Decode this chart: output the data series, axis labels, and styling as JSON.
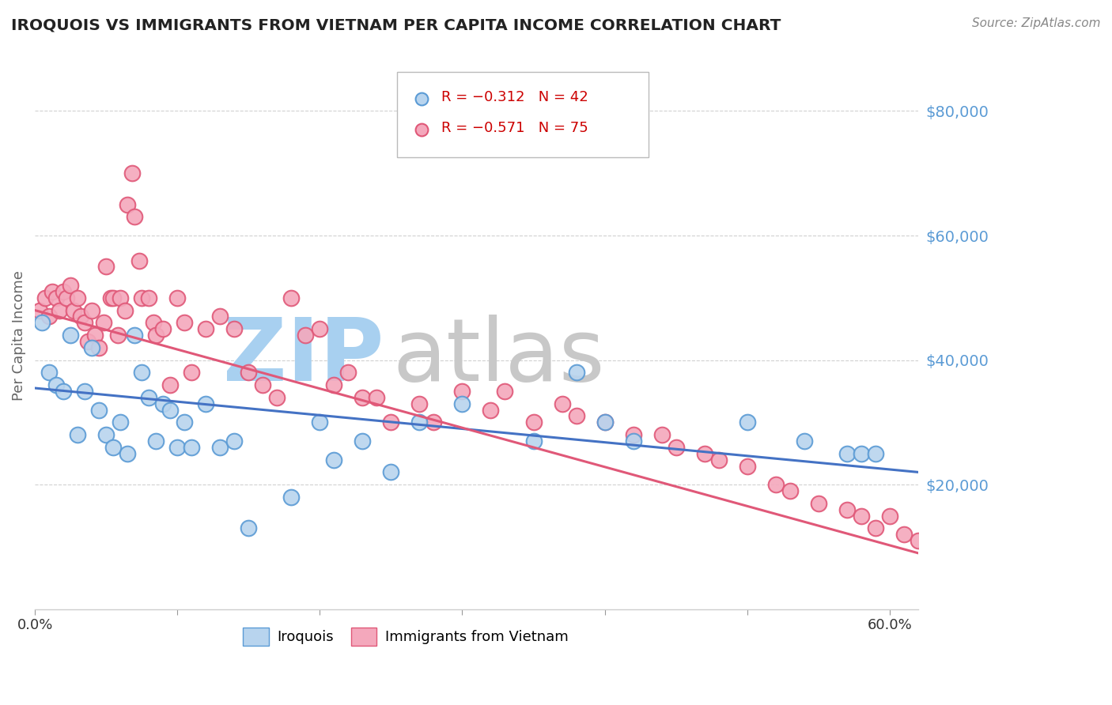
{
  "title": "IROQUOIS VS IMMIGRANTS FROM VIETNAM PER CAPITA INCOME CORRELATION CHART",
  "source": "Source: ZipAtlas.com",
  "ylabel": "Per Capita Income",
  "xlim": [
    0.0,
    0.62
  ],
  "ylim": [
    0,
    88000
  ],
  "yticks": [
    20000,
    40000,
    60000,
    80000
  ],
  "ytick_labels": [
    "$20,000",
    "$40,000",
    "$60,000",
    "$80,000"
  ],
  "xticks": [
    0.0,
    0.1,
    0.2,
    0.3,
    0.4,
    0.5,
    0.6
  ],
  "xtick_labels": [
    "0.0%",
    "",
    "",
    "",
    "",
    "",
    "60.0%"
  ],
  "series_iroquois": {
    "color": "#b8d4ee",
    "edge_color": "#5b9bd5",
    "x": [
      0.005,
      0.01,
      0.015,
      0.02,
      0.025,
      0.03,
      0.035,
      0.04,
      0.045,
      0.05,
      0.055,
      0.06,
      0.065,
      0.07,
      0.075,
      0.08,
      0.085,
      0.09,
      0.095,
      0.1,
      0.105,
      0.11,
      0.12,
      0.13,
      0.14,
      0.15,
      0.18,
      0.2,
      0.21,
      0.23,
      0.25,
      0.27,
      0.3,
      0.35,
      0.38,
      0.4,
      0.42,
      0.5,
      0.54,
      0.57,
      0.58,
      0.59
    ],
    "y": [
      46000,
      38000,
      36000,
      35000,
      44000,
      28000,
      35000,
      42000,
      32000,
      28000,
      26000,
      30000,
      25000,
      44000,
      38000,
      34000,
      27000,
      33000,
      32000,
      26000,
      30000,
      26000,
      33000,
      26000,
      27000,
      13000,
      18000,
      30000,
      24000,
      27000,
      22000,
      30000,
      33000,
      27000,
      38000,
      30000,
      27000,
      30000,
      27000,
      25000,
      25000,
      25000
    ],
    "line_x": [
      0.0,
      0.62
    ],
    "line_y": [
      35500,
      22000
    ]
  },
  "series_vietnam": {
    "color": "#f4a8bc",
    "edge_color": "#e05878",
    "x": [
      0.003,
      0.007,
      0.01,
      0.012,
      0.015,
      0.017,
      0.02,
      0.022,
      0.025,
      0.027,
      0.03,
      0.032,
      0.035,
      0.037,
      0.04,
      0.042,
      0.045,
      0.048,
      0.05,
      0.053,
      0.055,
      0.058,
      0.06,
      0.063,
      0.065,
      0.068,
      0.07,
      0.073,
      0.075,
      0.08,
      0.083,
      0.085,
      0.09,
      0.095,
      0.1,
      0.105,
      0.11,
      0.12,
      0.13,
      0.14,
      0.15,
      0.16,
      0.17,
      0.18,
      0.19,
      0.2,
      0.21,
      0.22,
      0.23,
      0.24,
      0.25,
      0.27,
      0.28,
      0.3,
      0.32,
      0.33,
      0.35,
      0.37,
      0.38,
      0.4,
      0.42,
      0.44,
      0.45,
      0.47,
      0.48,
      0.5,
      0.52,
      0.53,
      0.55,
      0.57,
      0.58,
      0.59,
      0.6,
      0.61,
      0.62
    ],
    "y": [
      48000,
      50000,
      47000,
      51000,
      50000,
      48000,
      51000,
      50000,
      52000,
      48000,
      50000,
      47000,
      46000,
      43000,
      48000,
      44000,
      42000,
      46000,
      55000,
      50000,
      50000,
      44000,
      50000,
      48000,
      65000,
      70000,
      63000,
      56000,
      50000,
      50000,
      46000,
      44000,
      45000,
      36000,
      50000,
      46000,
      38000,
      45000,
      47000,
      45000,
      38000,
      36000,
      34000,
      50000,
      44000,
      45000,
      36000,
      38000,
      34000,
      34000,
      30000,
      33000,
      30000,
      35000,
      32000,
      35000,
      30000,
      33000,
      31000,
      30000,
      28000,
      28000,
      26000,
      25000,
      24000,
      23000,
      20000,
      19000,
      17000,
      16000,
      15000,
      13000,
      15000,
      12000,
      11000
    ],
    "line_x": [
      0.0,
      0.62
    ],
    "line_y": [
      48000,
      9000
    ]
  },
  "watermark_zip_color": "#a8d0f0",
  "watermark_atlas_color": "#c8c8c8",
  "title_color": "#222222",
  "axis_label_color": "#5b9bd5",
  "ylabel_color": "#666666",
  "grid_color": "#cccccc",
  "bg_color": "#ffffff",
  "legend_box_color": "#ffffff",
  "legend_border_color": "#aaaaaa"
}
